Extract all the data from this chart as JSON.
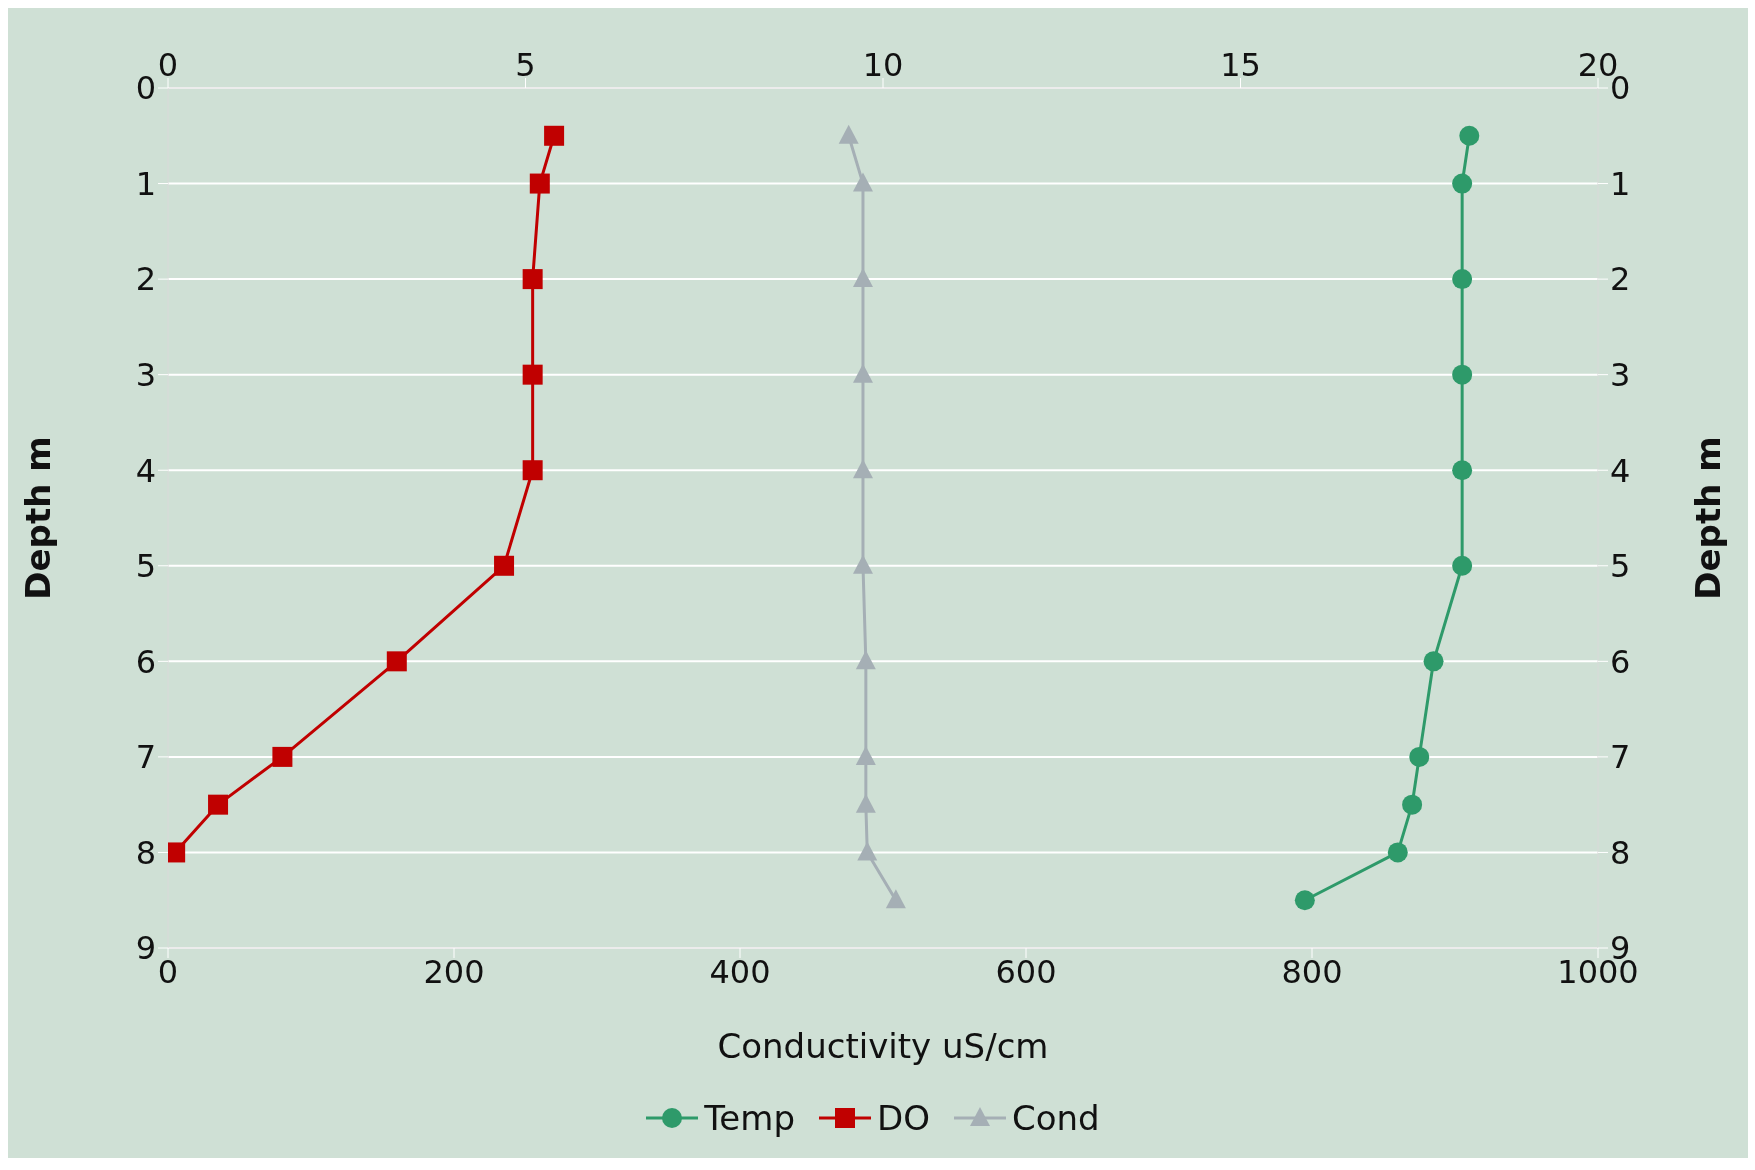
{
  "chart_data": {
    "type": "line",
    "orientation": "horizontal",
    "xlabel": "Conductivity uS/cm",
    "ylabel": "Depth m",
    "y2label": "Depth m",
    "x": [
      0.5,
      1,
      2,
      3,
      4,
      5,
      6,
      7,
      7.5,
      8,
      8.5
    ],
    "series": [
      {
        "name": "Temp",
        "color": "#2e9a6a",
        "axis": "x2",
        "marker": "circle",
        "values": [
          18.2,
          18.1,
          18.1,
          18.1,
          18.1,
          18.1,
          17.7,
          17.5,
          17.4,
          17.2,
          15.9
        ]
      },
      {
        "name": "DO",
        "color": "#c00000",
        "axis": "x2",
        "marker": "square",
        "values": [
          5.4,
          5.2,
          5.1,
          5.1,
          5.1,
          4.7,
          3.2,
          1.6,
          0.7,
          0.1,
          null
        ]
      },
      {
        "name": "Cond",
        "color": "#a5afb5",
        "marker": "triangle",
        "values": [
          476,
          486,
          486,
          486,
          486,
          486,
          488,
          488,
          488,
          489,
          509
        ]
      }
    ],
    "xlim": [
      0,
      1000
    ],
    "xticks": [
      0,
      200,
      400,
      600,
      800,
      1000
    ],
    "x2lim": [
      0,
      20
    ],
    "x2ticks": [
      0,
      5,
      10,
      15,
      20
    ],
    "ylim": [
      9,
      0
    ],
    "yticks": [
      0,
      1,
      2,
      3,
      4,
      5,
      6,
      7,
      8,
      9
    ],
    "y2lim": [
      9,
      0
    ],
    "y2ticks": [
      0,
      1,
      2,
      3,
      4,
      5,
      6,
      7,
      8,
      9
    ],
    "grid": "y",
    "legend": "bottom",
    "line_style": "solid"
  }
}
